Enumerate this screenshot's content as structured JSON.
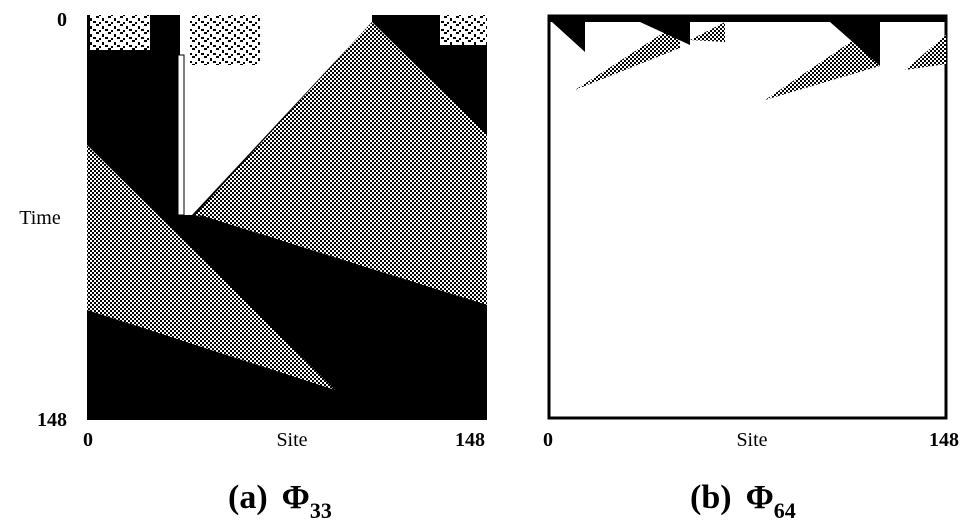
{
  "panels": [
    {
      "caption": {
        "label": "(a)",
        "symbol": "Φ",
        "subscript": "33"
      },
      "y_axis": {
        "label": "Time",
        "ticks": [
          "0",
          "148"
        ]
      },
      "x_axis": {
        "label": "Site",
        "ticks": [
          "0",
          "148"
        ]
      }
    },
    {
      "caption": {
        "label": "(b)",
        "symbol": "Φ",
        "subscript": "64"
      },
      "x_axis": {
        "label": "Site",
        "ticks": [
          "0",
          "148"
        ]
      }
    }
  ]
}
